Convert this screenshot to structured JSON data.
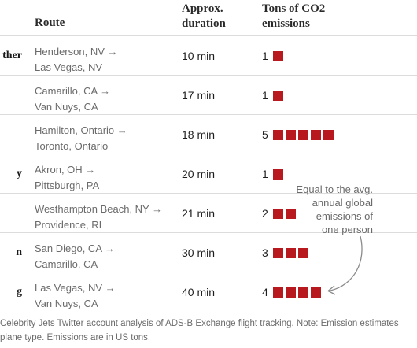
{
  "header": {
    "route": "Route",
    "duration": "Approx.\nduration",
    "emissions": "Tons of CO2\nemissions"
  },
  "rows": [
    {
      "first": "ther",
      "origin": "Henderson, NV →",
      "destination": "Las Vegas, NV",
      "duration": "10 min",
      "tons": 1
    },
    {
      "first": "",
      "origin": "Camarillo, CA →",
      "destination": "Van Nuys, CA",
      "duration": "17 min",
      "tons": 1
    },
    {
      "first": "",
      "origin": "Hamilton, Ontario →",
      "destination": "Toronto, Ontario",
      "duration": "18 min",
      "tons": 5
    },
    {
      "first": "y",
      "origin": "Akron, OH →",
      "destination": "Pittsburgh, PA",
      "duration": "20 min",
      "tons": 1
    },
    {
      "first": "",
      "origin": "Westhampton Beach, NY →",
      "destination": "Providence, RI",
      "duration": "21 min",
      "tons": 2
    },
    {
      "first": "n",
      "origin": "San Diego, CA →",
      "destination": "Camarillo, CA",
      "duration": "30 min",
      "tons": 3
    },
    {
      "first": "g",
      "origin": "Las Vegas, NV →",
      "destination": "Van Nuys, CA",
      "duration": "40 min",
      "tons": 4
    }
  ],
  "annotation": {
    "line1": "Equal to the avg.",
    "line2": "annual global",
    "line3": "emissions of",
    "line4": "one person"
  },
  "footnote": {
    "line1": "Celebrity Jets Twitter account analysis of ADS-B Exchange flight tracking. Note: Emission estimates",
    "line2": "plane type. Emissions are in US tons."
  },
  "colors": {
    "square": "#b8191e"
  }
}
